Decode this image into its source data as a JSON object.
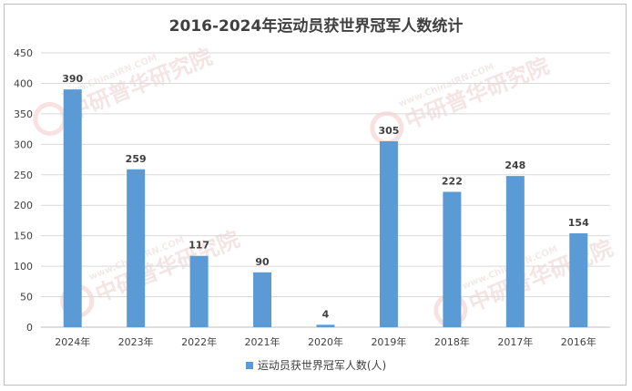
{
  "chart_data": {
    "type": "bar",
    "title": "2016-2024年运动员获世界冠军人数统计",
    "categories": [
      "2024年",
      "2023年",
      "2022年",
      "2021年",
      "2020年",
      "2019年",
      "2018年",
      "2017年",
      "2016年"
    ],
    "series": [
      {
        "name": "运动员获世界冠军人数(人)",
        "values": [
          390,
          259,
          117,
          90,
          4,
          305,
          222,
          248,
          154
        ],
        "color": "#5b9bd5"
      }
    ],
    "ylim": [
      0,
      450
    ],
    "yticks": [
      0,
      50,
      100,
      150,
      200,
      250,
      300,
      350,
      400,
      450
    ],
    "xlabel": "",
    "ylabel": "",
    "grid": true,
    "legend_position": "bottom",
    "data_labels": true
  },
  "watermark": {
    "text": "中研普华研究院",
    "url_text": "www.ChinaIRN.COM"
  }
}
